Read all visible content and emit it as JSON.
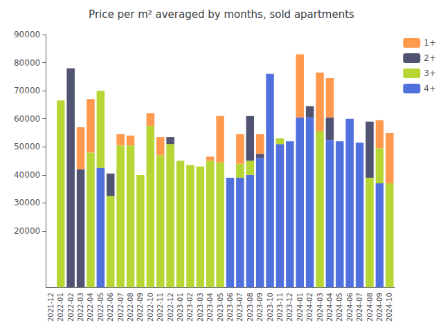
{
  "chart_data": {
    "type": "bar",
    "title": "Price per m² averaged by months, sold apartments",
    "categories": [
      "2021-12",
      "2022-01",
      "2022-02",
      "2022-03",
      "2022-04",
      "2022-05",
      "2022-06",
      "2022-07",
      "2022-08",
      "2022-09",
      "2022-10",
      "2022-11",
      "2022-12",
      "2023-01",
      "2023-02",
      "2023-03",
      "2023-04",
      "2023-05",
      "2023-06",
      "2023-07",
      "2023-08",
      "2023-09",
      "2023-10",
      "2023-11",
      "2023-12",
      "2024-01",
      "2024-02",
      "2024-03",
      "2024-04",
      "2024-05",
      "2024-06",
      "2024-07",
      "2024-08",
      "2024-09",
      "2024-10"
    ],
    "series": [
      {
        "name": "4+",
        "values": [
          0,
          0,
          0,
          0,
          0,
          42500,
          0,
          0,
          0,
          0,
          0,
          0,
          0,
          0,
          0,
          0,
          0,
          0,
          39000,
          39000,
          40000,
          46000,
          76000,
          51000,
          52000,
          60500,
          60500,
          0,
          52500,
          52000,
          60000,
          51500,
          0,
          37000,
          0
        ]
      },
      {
        "name": "3+",
        "values": [
          0,
          66500,
          0,
          0,
          48000,
          27500,
          32500,
          50500,
          50500,
          40000,
          57500,
          47000,
          51000,
          45000,
          43500,
          43000,
          45000,
          44500,
          0,
          5000,
          5000,
          0,
          0,
          2000,
          0,
          0,
          0,
          55500,
          0,
          0,
          0,
          0,
          39000,
          12500,
          37000
        ]
      },
      {
        "name": "2+",
        "values": [
          0,
          0,
          78000,
          42000,
          0,
          0,
          8000,
          0,
          0,
          0,
          0,
          0,
          2500,
          0,
          0,
          0,
          0,
          0,
          0,
          0,
          16000,
          1500,
          0,
          0,
          0,
          0,
          4000,
          0,
          8000,
          0,
          0,
          0,
          20000,
          0,
          0
        ]
      },
      {
        "name": "1+",
        "values": [
          0,
          0,
          0,
          15000,
          19000,
          0,
          0,
          4000,
          3500,
          0,
          4500,
          6500,
          0,
          0,
          0,
          0,
          1500,
          16500,
          0,
          10500,
          0,
          7000,
          0,
          0,
          0,
          22500,
          0,
          21000,
          14000,
          0,
          0,
          0,
          0,
          10000,
          18000
        ]
      }
    ],
    "stacked": true,
    "ylim": [
      0,
      90000
    ],
    "yticks": [
      20000,
      30000,
      40000,
      50000,
      60000,
      70000,
      80000,
      90000
    ],
    "grid": false,
    "legend": "upper right"
  }
}
